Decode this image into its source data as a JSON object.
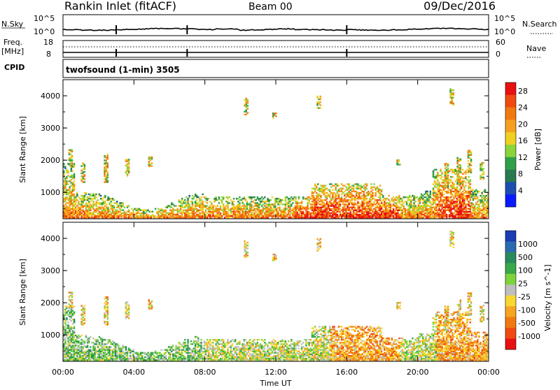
{
  "header": {
    "station": "Rankin Inlet (fitACF)",
    "beam": "Beam 00",
    "date": "09/Dec/2016"
  },
  "top_panels": {
    "nsky_label": "N.Sky",
    "nsearch_label": "N.Search",
    "nsky_ticks": [
      "10^5",
      "10^0"
    ],
    "nsearch_ticks": [
      "10^5",
      "10^0"
    ],
    "freq_label": "Freq.",
    "freq_unit": "[MHz]",
    "freq_ticks": [
      "18",
      "8"
    ],
    "nave_label": "Nave",
    "nave_ticks": [
      "60",
      "0"
    ],
    "cpid_label": "CPID",
    "cpid_value": "twofsound (1-min) 3505"
  },
  "axes": {
    "ylabel": "Slant Range [km]",
    "xlabel": "Time UT",
    "x_ticks": [
      "00:00",
      "04:00",
      "08:00",
      "12:00",
      "16:00",
      "20:00",
      "00:00"
    ],
    "y_ticks": [
      "1000",
      "2000",
      "3000",
      "4000"
    ]
  },
  "colors": {
    "power_scale": [
      "#0a1aff",
      "#1e4fb0",
      "#2a7a50",
      "#2fa04a",
      "#8cd43c",
      "#f0d020",
      "#f5a020",
      "#f07a10",
      "#f04a10",
      "#e81010"
    ],
    "velocity_scale": [
      "#1a3cb4",
      "#2a6ab0",
      "#2a8a5c",
      "#3aa848",
      "#7cd43a",
      "#bebebe",
      "#f8d830",
      "#f5a520",
      "#f07a10",
      "#f04a10",
      "#e81010"
    ]
  },
  "chart_data": [
    {
      "type": "heatmap",
      "title": "Power",
      "xlabel": "Time UT",
      "ylabel": "Slant Range [km]",
      "xlim": [
        0,
        24
      ],
      "ylim": [
        180,
        4500
      ],
      "colorbar_label": "Power [dB]",
      "colorbar_ticks": [
        "4",
        "8",
        "12",
        "16",
        "20",
        "24",
        "28"
      ],
      "colorbar_range": [
        0,
        30
      ]
    },
    {
      "type": "heatmap",
      "title": "Velocity",
      "xlabel": "Time UT",
      "ylabel": "Slant Range [km]",
      "xlim": [
        0,
        24
      ],
      "ylim": [
        180,
        4500
      ],
      "colorbar_label": "Velocity [m s^-1]",
      "colorbar_ticks": [
        "1000",
        "500",
        "100",
        "25",
        "-25",
        "-100",
        "-500",
        "-1000"
      ]
    }
  ]
}
